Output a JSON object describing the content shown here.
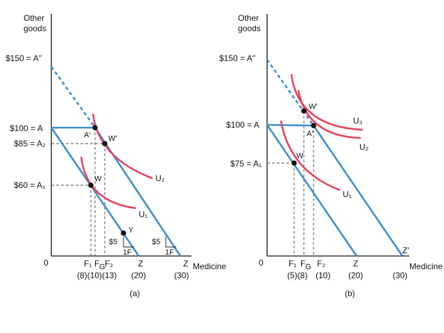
{
  "colors": {
    "budget": "#3b8fd0",
    "indifference": "#e8435a",
    "axis": "#111111"
  },
  "panel_a": {
    "y_axis_title_line1": "Other",
    "y_axis_title_line2": "goods",
    "y_label_150": "$150 = A′′",
    "y_label_100": "$100 = A",
    "y_label_85": "$85 = A₂",
    "y_label_60": "$60 = A₁",
    "origin": "0",
    "x_axis_title": "Medicine",
    "x_labels": [
      "F₁",
      "F",
      "F₂",
      "Z",
      "Z"
    ],
    "x_values": [
      "(8)(10)(13)",
      "(20)",
      "(30)"
    ],
    "curve_u1": "U₁",
    "curve_u2": "U₂",
    "point_a_prime": "A′",
    "point_w_prime": "W′",
    "point_w": "W",
    "point_y": "Y",
    "slope_dollar_1": "$5",
    "slope_unit_1": "1F",
    "slope_dollar_2": "$5",
    "slope_unit_2": "1F",
    "caption": "(a)"
  },
  "panel_b": {
    "y_axis_title_line1": "Other",
    "y_axis_title_line2": "goods",
    "y_label_150": "$150 = A′′",
    "y_label_100": "$100 = A",
    "y_label_75": "$75 = A₁",
    "origin": "0",
    "x_axis_title": "Medicine",
    "x_labels": [
      "F₁",
      "F",
      "F₂",
      "Z",
      "Z′"
    ],
    "x_values": [
      "(5)(8)",
      "(10)",
      "(20)",
      "(30)"
    ],
    "curve_u1": "U₁",
    "curve_u2": "U₂",
    "curve_u3": "U₃",
    "point_a_prime": "A′",
    "point_w_prime": "W′",
    "point_w": "W",
    "caption": "(b)"
  }
}
